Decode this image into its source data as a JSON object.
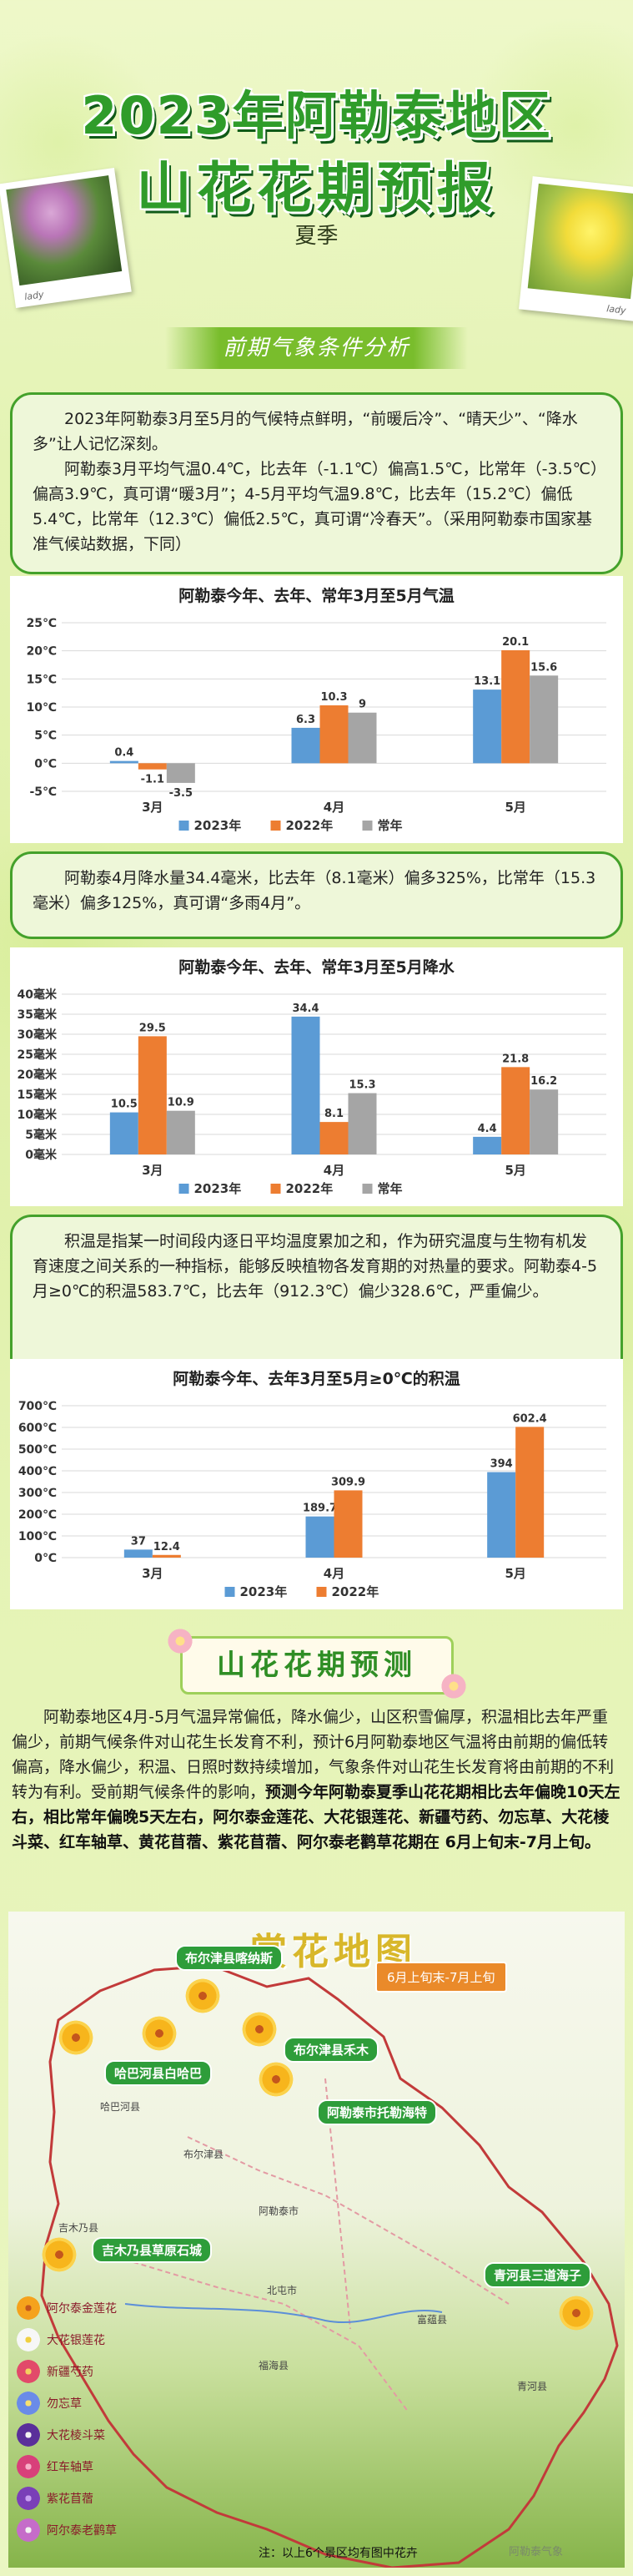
{
  "header": {
    "title_line1": "2023年阿勒泰地区",
    "title_line2": "山花花期预报",
    "season": "夏季",
    "photo_signature": "lady"
  },
  "section1": {
    "banner": "前期气象条件分析",
    "box1": [
      "2023年阿勒泰3月至5月的气候特点鲜明，“前暖后冷”、“晴天少”、“降水多”让人记忆深刻。",
      "阿勒泰3月平均气温0.4℃，比去年（-1.1℃）偏高1.5℃，比常年（-3.5℃）偏高3.9℃，真可谓“暖3月”；4-5月平均气温9.8℃，比去年（15.2℃）偏低5.4℃，比常年（12.3℃）偏低2.5℃，真可谓“冷春天”。（采用阿勒泰市国家基准气候站数据，下同）"
    ],
    "box2": "阿勒泰4月降水量34.4毫米，比去年（8.1毫米）偏多325%，比常年（15.3毫米）偏多125%，真可谓“多雨4月”。",
    "box3": "积温是指某一时间段内逐日平均温度累加之和，作为研究温度与生物有机发育速度之间关系的一种指标，能够反映植物各发育期的对热量的要求。阿勒泰4-5月≥0℃的积温583.7℃，比去年（912.3℃）偏少328.6℃，严重偏少。"
  },
  "colors": {
    "series_2023": "#5b9bd5",
    "series_2022": "#ed7d31",
    "series_normal": "#a5a5a5",
    "accent_green": "#2f9c2a"
  },
  "chart_data": [
    {
      "type": "bar",
      "title": "阿勒泰今年、去年、常年3月至5月气温",
      "categories": [
        "3月",
        "4月",
        "5月"
      ],
      "yunit": "℃",
      "ylim": [
        -5,
        25
      ],
      "yticks": [
        -5,
        0,
        5,
        10,
        15,
        20,
        25
      ],
      "grid": true,
      "legend": "bottom",
      "series": [
        {
          "name": "2023年",
          "values": [
            0.4,
            6.3,
            13.1
          ]
        },
        {
          "name": "2022年",
          "values": [
            -1.1,
            10.3,
            20.1
          ]
        },
        {
          "name": "常年",
          "values": [
            -3.5,
            9,
            15.6
          ]
        }
      ],
      "data_labels": [
        [
          "0.4",
          "6.3",
          "13.1"
        ],
        [
          "-1.1",
          "10.3",
          "20.1"
        ],
        [
          "-3.5",
          "9",
          "15.6"
        ]
      ]
    },
    {
      "type": "bar",
      "title": "阿勒泰今年、去年、常年3月至5月降水",
      "categories": [
        "3月",
        "4月",
        "5月"
      ],
      "yunit": "毫米",
      "ylim": [
        0,
        40
      ],
      "yticks": [
        0,
        5,
        10,
        15,
        20,
        25,
        30,
        35,
        40
      ],
      "grid": true,
      "legend": "bottom",
      "series": [
        {
          "name": "2023年",
          "values": [
            10.5,
            34.4,
            4.4
          ]
        },
        {
          "name": "2022年",
          "values": [
            29.5,
            8.1,
            21.8
          ]
        },
        {
          "name": "常年",
          "values": [
            10.9,
            15.3,
            16.2
          ]
        }
      ],
      "data_labels": [
        [
          "10.5",
          "34.4",
          "4.4"
        ],
        [
          "29.5",
          "8.1",
          "21.8"
        ],
        [
          "10.9",
          "15.3",
          "16.2"
        ]
      ]
    },
    {
      "type": "bar",
      "title": "阿勒泰今年、去年3月至5月≥0℃的积温",
      "categories": [
        "3月",
        "4月",
        "5月"
      ],
      "yunit": "℃",
      "ylim": [
        0,
        700
      ],
      "yticks": [
        0,
        100,
        200,
        300,
        400,
        500,
        600,
        700
      ],
      "grid": true,
      "legend": "bottom",
      "series": [
        {
          "name": "2023年",
          "values": [
            37,
            189.7,
            394
          ]
        },
        {
          "name": "2022年",
          "values": [
            12.4,
            309.9,
            602.4
          ]
        }
      ],
      "data_labels": [
        [
          "37",
          "189.7",
          "394"
        ],
        [
          "12.4",
          "309.9",
          "602.4"
        ]
      ]
    }
  ],
  "section2": {
    "banner": "山花花期预测",
    "forecast_plain": "阿勒泰地区4月-5月气温异常偏低，降水偏少，山区积雪偏厚，积温相比去年严重偏少，前期气候条件对山花生长发育不利，预计6月阿勒泰地区气温将由前期的偏低转偏高，降水偏少，积温、日照时数持续增加，气象条件对山花生长发育将由前期的不利转为有利。受前期气候条件的影响，",
    "forecast_bold": "预测今年阿勒泰夏季山花花期相比去年偏晚10天左右，相比常年偏晚5天左右，阿尔泰金莲花、大花银莲花、新疆芍药、勿忘草、大花棱斗菜、红车轴草、黄花苜蓿、紫花苜蓿、阿尔泰老鹳草花期在 6月上旬末-7月上旬。"
  },
  "map": {
    "title": "赏花地图",
    "period": "6月上旬末-7月上旬",
    "labels": [
      "布尔津县喀纳斯",
      "布尔津县禾木",
      "哈巴河县白哈巴",
      "阿勒泰市托勒海特",
      "吉木乃县草原石城",
      "青河县三道海子"
    ],
    "places": [
      "哈巴河县",
      "布尔津县",
      "阿勒泰市",
      "吉木乃县",
      "北屯市",
      "富蕴县",
      "福海县",
      "青河县"
    ],
    "legend": [
      "阿尔泰金莲花",
      "大花银莲花",
      "新疆芍药",
      "勿忘草",
      "大花棱斗菜",
      "红车轴草",
      "紫花苜蓿",
      "阿尔泰老鹳草"
    ],
    "legend_colors": [
      "#f5a21c",
      "#f2f2f2",
      "#e24a6a",
      "#6a8be8",
      "#5a2f9a",
      "#d8407a",
      "#7a3fb8",
      "#c56cc9"
    ],
    "note": "注：以上6个景区均有图中花卉",
    "watermark": "阿勒泰气象"
  }
}
